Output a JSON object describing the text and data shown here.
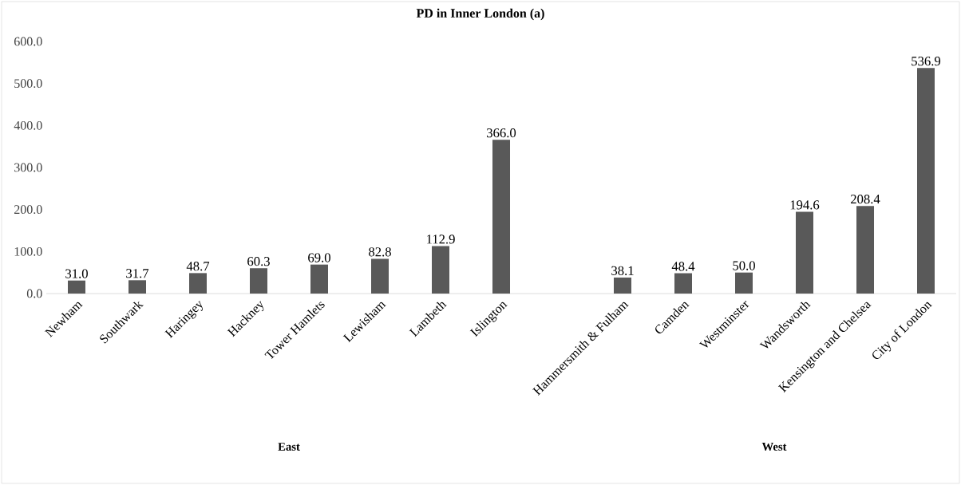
{
  "chart_data": {
    "type": "bar",
    "title": "**PD in Inner London (a)**",
    "categories": [
      "Newham",
      "Southwark",
      "Haringey",
      "Hackney",
      "Tower Hamlets",
      "Lewisham",
      "Lambeth",
      "Islington",
      null,
      "Hammersmith & Fulham",
      "Camden",
      "Westminster",
      "Wandsworth",
      "Kensington and Chelsea",
      "City of London"
    ],
    "values": [
      31.0,
      31.7,
      48.7,
      60.3,
      69.0,
      82.8,
      112.9,
      366.0,
      null,
      38.1,
      48.4,
      50.0,
      194.6,
      208.4,
      536.9
    ],
    "value_labels": [
      "31.0",
      "31.7",
      "48.7",
      "60.3",
      "69.0",
      "82.8",
      "112.9",
      "366.0",
      null,
      "38.1",
      "48.4",
      "50.0",
      "194.6",
      "208.4",
      "536.9"
    ],
    "color": "#595959",
    "ylim": [
      0,
      600
    ],
    "yticks": [
      {
        "value": 0,
        "label": "0.0"
      },
      {
        "value": 100,
        "label": "100.0"
      },
      {
        "value": 200,
        "label": "200.0"
      },
      {
        "value": 300,
        "label": "300.0"
      },
      {
        "value": 400,
        "label": "400.0"
      },
      {
        "value": 500,
        "label": "500.0"
      },
      {
        "value": 600,
        "label": "600.0"
      }
    ],
    "annotations": [
      "**East**",
      "**West**"
    ],
    "grid": false
  }
}
